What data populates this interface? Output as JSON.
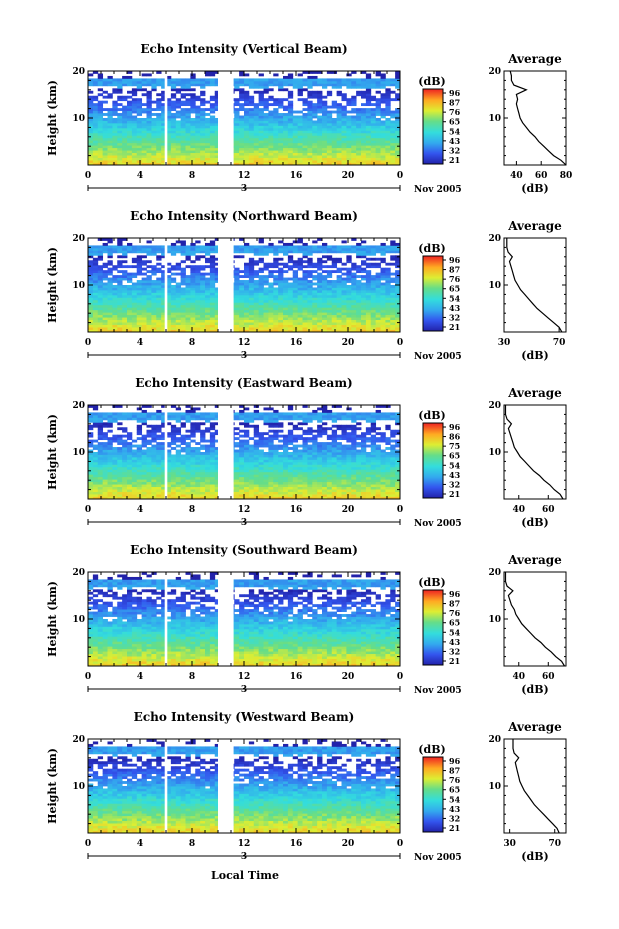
{
  "figure": {
    "xlabel": "Local Time",
    "date_label": "Nov 2005"
  },
  "chart_data": [
    {
      "type": "heatmap",
      "title": "Echo Intensity (Vertical Beam)",
      "ylabel": "Height (km)",
      "ylim": [
        0,
        20
      ],
      "ytick_labels": [
        "20",
        "10"
      ],
      "xlim": [
        0,
        24
      ],
      "xtick_labels": [
        "0",
        "4",
        "8",
        "12",
        "16",
        "20",
        "0"
      ],
      "day_marker": "3",
      "data_gaps": [
        [
          5.9,
          6.1
        ],
        [
          10.0,
          11.2
        ]
      ],
      "colorbar": {
        "label": "(dB)",
        "ticks": [
          "96",
          "87",
          "76",
          "65",
          "54",
          "43",
          "32",
          "21"
        ]
      },
      "avg_profile": {
        "title": "Average",
        "xlabel": "(dB)",
        "xlim": [
          30,
          80
        ],
        "xtick_labels": [
          "40",
          "60",
          "80"
        ],
        "height": [
          0,
          1,
          2,
          3,
          4,
          5,
          6,
          7,
          8,
          9,
          10,
          11,
          12,
          13,
          14,
          15,
          16,
          17,
          18,
          19,
          20
        ],
        "value": [
          80,
          76,
          70,
          66,
          62,
          58,
          55,
          51,
          48,
          45,
          43,
          42,
          41,
          40,
          41,
          40,
          48,
          38,
          36,
          36,
          35
        ]
      }
    },
    {
      "type": "heatmap",
      "title": "Echo Intensity (Northward Beam)",
      "ylabel": "Height (km)",
      "ylim": [
        0,
        20
      ],
      "ytick_labels": [
        "20",
        "10"
      ],
      "xlim": [
        0,
        24
      ],
      "xtick_labels": [
        "0",
        "4",
        "8",
        "12",
        "16",
        "20",
        "0"
      ],
      "day_marker": "3",
      "data_gaps": [
        [
          5.9,
          6.1
        ],
        [
          10.0,
          11.2
        ]
      ],
      "colorbar": {
        "label": "(dB)",
        "ticks": [
          "96",
          "87",
          "76",
          "65",
          "54",
          "43",
          "32",
          "21"
        ]
      },
      "avg_profile": {
        "title": "Average",
        "xlabel": "(dB)",
        "xlim": [
          30,
          75
        ],
        "xtick_labels": [
          "30",
          "70"
        ],
        "height": [
          0,
          1,
          2,
          3,
          4,
          5,
          6,
          7,
          8,
          9,
          10,
          11,
          12,
          13,
          14,
          15,
          16,
          17,
          18,
          19,
          20
        ],
        "value": [
          72,
          70,
          66,
          62,
          58,
          54,
          51,
          48,
          45,
          42,
          40,
          38,
          37,
          36,
          35,
          34,
          36,
          33,
          32,
          32,
          32
        ]
      }
    },
    {
      "type": "heatmap",
      "title": "Echo Intensity (Eastward Beam)",
      "ylabel": "Height (km)",
      "ylim": [
        0,
        20
      ],
      "ytick_labels": [
        "20",
        "10"
      ],
      "xlim": [
        0,
        24
      ],
      "xtick_labels": [
        "0",
        "4",
        "8",
        "12",
        "16",
        "20",
        "0"
      ],
      "day_marker": "3",
      "data_gaps": [
        [
          5.9,
          6.1
        ],
        [
          10.0,
          11.2
        ]
      ],
      "colorbar": {
        "label": "(dB)",
        "ticks": [
          "96",
          "86",
          "75",
          "65",
          "54",
          "43",
          "32",
          "21"
        ]
      },
      "avg_profile": {
        "title": "Average",
        "xlabel": "(dB)",
        "xlim": [
          30,
          72
        ],
        "xtick_labels": [
          "40",
          "60"
        ],
        "height": [
          0,
          1,
          2,
          3,
          4,
          5,
          6,
          7,
          8,
          9,
          10,
          11,
          12,
          13,
          14,
          15,
          16,
          17,
          18,
          19,
          20
        ],
        "value": [
          70,
          68,
          64,
          61,
          57,
          54,
          50,
          47,
          44,
          41,
          39,
          37,
          36,
          35,
          34,
          33,
          35,
          32,
          31,
          31,
          31
        ]
      }
    },
    {
      "type": "heatmap",
      "title": "Echo Intensity (Southward Beam)",
      "ylabel": "Height (km)",
      "ylim": [
        0,
        20
      ],
      "ytick_labels": [
        "20",
        "10"
      ],
      "xlim": [
        0,
        24
      ],
      "xtick_labels": [
        "0",
        "4",
        "8",
        "12",
        "16",
        "20",
        "0"
      ],
      "day_marker": "3",
      "data_gaps": [
        [
          5.9,
          6.1
        ],
        [
          10.0,
          11.2
        ]
      ],
      "colorbar": {
        "label": "(dB)",
        "ticks": [
          "96",
          "87",
          "76",
          "65",
          "54",
          "43",
          "32",
          "21"
        ]
      },
      "avg_profile": {
        "title": "Average",
        "xlabel": "(dB)",
        "xlim": [
          30,
          72
        ],
        "xtick_labels": [
          "40",
          "60"
        ],
        "height": [
          0,
          1,
          2,
          3,
          4,
          5,
          6,
          7,
          8,
          9,
          10,
          11,
          12,
          13,
          14,
          15,
          16,
          17,
          18,
          19,
          20
        ],
        "value": [
          71,
          69,
          65,
          62,
          58,
          55,
          51,
          48,
          45,
          42,
          40,
          38,
          37,
          35,
          34,
          33,
          36,
          32,
          31,
          31,
          31
        ]
      }
    },
    {
      "type": "heatmap",
      "title": "Echo Intensity (Westward Beam)",
      "ylabel": "Height (km)",
      "ylim": [
        0,
        20
      ],
      "ytick_labels": [
        "20",
        "10"
      ],
      "xlim": [
        0,
        24
      ],
      "xtick_labels": [
        "0",
        "4",
        "8",
        "12",
        "16",
        "20",
        "0"
      ],
      "day_marker": "3",
      "data_gaps": [
        [
          5.9,
          6.1
        ],
        [
          10.0,
          11.2
        ]
      ],
      "colorbar": {
        "label": "(dB)",
        "ticks": [
          "96",
          "87",
          "76",
          "65",
          "54",
          "43",
          "32",
          "21"
        ]
      },
      "avg_profile": {
        "title": "Average",
        "xlabel": "(dB)",
        "xlim": [
          25,
          80
        ],
        "xtick_labels": [
          "30",
          "70"
        ],
        "height": [
          0,
          1,
          2,
          3,
          4,
          5,
          6,
          7,
          8,
          9,
          10,
          11,
          12,
          13,
          14,
          15,
          16,
          17,
          18,
          19,
          20
        ],
        "value": [
          74,
          72,
          68,
          64,
          60,
          56,
          52,
          49,
          46,
          43,
          41,
          39,
          38,
          37,
          36,
          35,
          38,
          34,
          33,
          33,
          33
        ]
      }
    }
  ]
}
